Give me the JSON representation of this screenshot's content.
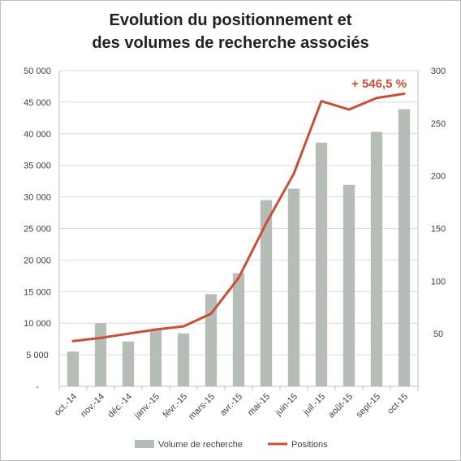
{
  "chart_data": {
    "type": "bar",
    "title_line1": "Evolution du positionnement et",
    "title_line2": "des volumes de recherche associés",
    "categories": [
      "oct.-14",
      "nov.-14",
      "déc.-14",
      "janv.-15",
      "févr.-15",
      "mars-15",
      "avr.-15",
      "mai-15",
      "juin-15",
      "juil.-15",
      "août-15",
      "sept-15",
      "oct-15"
    ],
    "series": [
      {
        "name": "Volume de recherche",
        "type": "bar",
        "axis": "left",
        "color": "#b5bdb6",
        "values": [
          5500,
          10000,
          7100,
          9000,
          8400,
          14600,
          17900,
          29500,
          31300,
          38600,
          31900,
          40300,
          43900
        ]
      },
      {
        "name": "Positions",
        "type": "line",
        "axis": "right",
        "color": "#c8503a",
        "values": [
          43,
          46,
          50,
          54,
          57,
          69,
          103,
          155,
          202,
          271,
          263,
          274,
          278
        ]
      }
    ],
    "y_left": {
      "min": 0,
      "max": 50000,
      "ticks": [
        "-",
        "5 000",
        "10 000",
        "15 000",
        "20 000",
        "25 000",
        "30 000",
        "35 000",
        "40 000",
        "45 000",
        "50 000"
      ]
    },
    "y_right": {
      "min": 0,
      "max": 300,
      "ticks": [
        "",
        "50",
        "100",
        "150",
        "200",
        "250",
        "300"
      ]
    },
    "annotation": "+ 546,5 %",
    "grid": true,
    "legend_position": "bottom"
  }
}
